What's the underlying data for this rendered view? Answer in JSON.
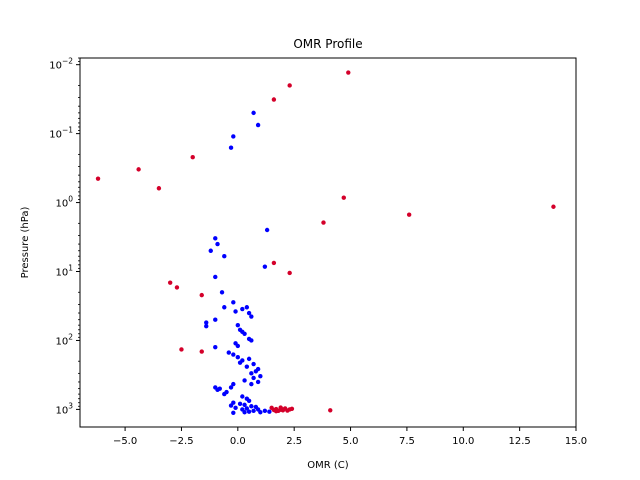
{
  "chart_data": {
    "type": "scatter",
    "title": "OMR Profile",
    "xlabel": "OMR (C)",
    "ylabel": "Pressure (hPa)",
    "xlim": [
      -7,
      15
    ],
    "ylim": [
      1800,
      0.008
    ],
    "y_scale": "log",
    "y_inverted": true,
    "grid": false,
    "x_ticks": [
      -5,
      -2.5,
      0,
      2.5,
      5,
      7.5,
      10,
      12.5,
      15
    ],
    "x_tick_labels": [
      "−5.0",
      "−2.5",
      "0.0",
      "2.5",
      "5.0",
      "7.5",
      "10.0",
      "12.5",
      "15.0"
    ],
    "y_ticks": [
      0.01,
      0.1,
      1,
      10,
      100,
      1000
    ],
    "y_tick_labels": [
      {
        "base": "10",
        "exp": "−2"
      },
      {
        "base": "10",
        "exp": "−1"
      },
      {
        "base": "10",
        "exp": "0"
      },
      {
        "base": "10",
        "exp": "1"
      },
      {
        "base": "10",
        "exp": "2"
      },
      {
        "base": "10",
        "exp": "3"
      }
    ],
    "series": [
      {
        "color": "#0000ff",
        "points": [
          [
            0.7,
            0.05
          ],
          [
            0.9,
            0.075
          ],
          [
            -0.2,
            0.11
          ],
          [
            -0.3,
            0.16
          ],
          [
            1.3,
            2.5
          ],
          [
            -1.0,
            3.3
          ],
          [
            -0.9,
            4.0
          ],
          [
            -1.2,
            5.0
          ],
          [
            -0.6,
            6.0
          ],
          [
            1.2,
            8.5
          ],
          [
            -1.0,
            12
          ],
          [
            -0.7,
            20
          ],
          [
            -0.2,
            28
          ],
          [
            -0.6,
            33
          ],
          [
            0.2,
            35
          ],
          [
            -0.1,
            38
          ],
          [
            0.4,
            33
          ],
          [
            0.5,
            40
          ],
          [
            0.6,
            45
          ],
          [
            -1.0,
            50
          ],
          [
            -1.4,
            55
          ],
          [
            -1.4,
            62
          ],
          [
            0.0,
            60
          ],
          [
            0.1,
            70
          ],
          [
            0.2,
            75
          ],
          [
            0.3,
            80
          ],
          [
            0.5,
            95
          ],
          [
            0.6,
            100
          ],
          [
            -0.1,
            110
          ],
          [
            0.0,
            120
          ],
          [
            -1.0,
            125
          ],
          [
            -0.4,
            150
          ],
          [
            -0.2,
            160
          ],
          [
            0.0,
            175
          ],
          [
            0.5,
            185
          ],
          [
            0.2,
            195
          ],
          [
            0.1,
            210
          ],
          [
            0.7,
            220
          ],
          [
            0.4,
            240
          ],
          [
            0.9,
            260
          ],
          [
            0.8,
            280
          ],
          [
            0.6,
            300
          ],
          [
            1.0,
            330
          ],
          [
            0.7,
            350
          ],
          [
            0.3,
            380
          ],
          [
            0.9,
            400
          ],
          [
            0.6,
            430
          ],
          [
            -0.2,
            430
          ],
          [
            -0.3,
            480
          ],
          [
            -0.8,
            500
          ],
          [
            -0.9,
            520
          ],
          [
            -1.0,
            480
          ],
          [
            -0.5,
            560
          ],
          [
            -0.6,
            600
          ],
          [
            0.2,
            650
          ],
          [
            0.4,
            700
          ],
          [
            0.5,
            750
          ],
          [
            -0.2,
            800
          ],
          [
            0.1,
            830
          ],
          [
            0.3,
            860
          ],
          [
            -0.3,
            880
          ],
          [
            0.6,
            900
          ],
          [
            0.8,
            920
          ],
          [
            -0.1,
            950
          ],
          [
            0.4,
            970
          ],
          [
            0.2,
            1000
          ],
          [
            0.7,
            1050
          ],
          [
            0.9,
            1000
          ],
          [
            0.5,
            1080
          ],
          [
            0.3,
            1100
          ],
          [
            -0.2,
            1120
          ],
          [
            1.0,
            1100
          ],
          [
            1.2,
            1050
          ],
          [
            1.4,
            1080
          ]
        ]
      },
      {
        "color": "#d4002a",
        "points": [
          [
            2.3,
            0.02
          ],
          [
            4.9,
            0.013
          ],
          [
            1.6,
            0.032
          ],
          [
            -2.0,
            0.22
          ],
          [
            -4.4,
            0.33
          ],
          [
            -6.2,
            0.45
          ],
          [
            -3.5,
            0.62
          ],
          [
            4.7,
            0.85
          ],
          [
            14.0,
            1.15
          ],
          [
            7.6,
            1.5
          ],
          [
            3.8,
            1.95
          ],
          [
            1.6,
            7.5
          ],
          [
            2.3,
            10.5
          ],
          [
            -3.0,
            14.5
          ],
          [
            -2.7,
            17
          ],
          [
            -1.6,
            22
          ],
          [
            -2.5,
            135
          ],
          [
            -1.6,
            145
          ],
          [
            1.5,
            950
          ],
          [
            1.7,
            990
          ],
          [
            1.9,
            1010
          ],
          [
            2.1,
            970
          ],
          [
            2.3,
            1000
          ],
          [
            2.0,
            1030
          ],
          [
            1.8,
            1050
          ],
          [
            2.2,
            1040
          ],
          [
            2.4,
            980
          ],
          [
            1.6,
            1020
          ],
          [
            1.9,
            940
          ],
          [
            2.0,
            1000
          ],
          [
            1.7,
            1060
          ],
          [
            4.1,
            1030
          ]
        ]
      }
    ]
  }
}
